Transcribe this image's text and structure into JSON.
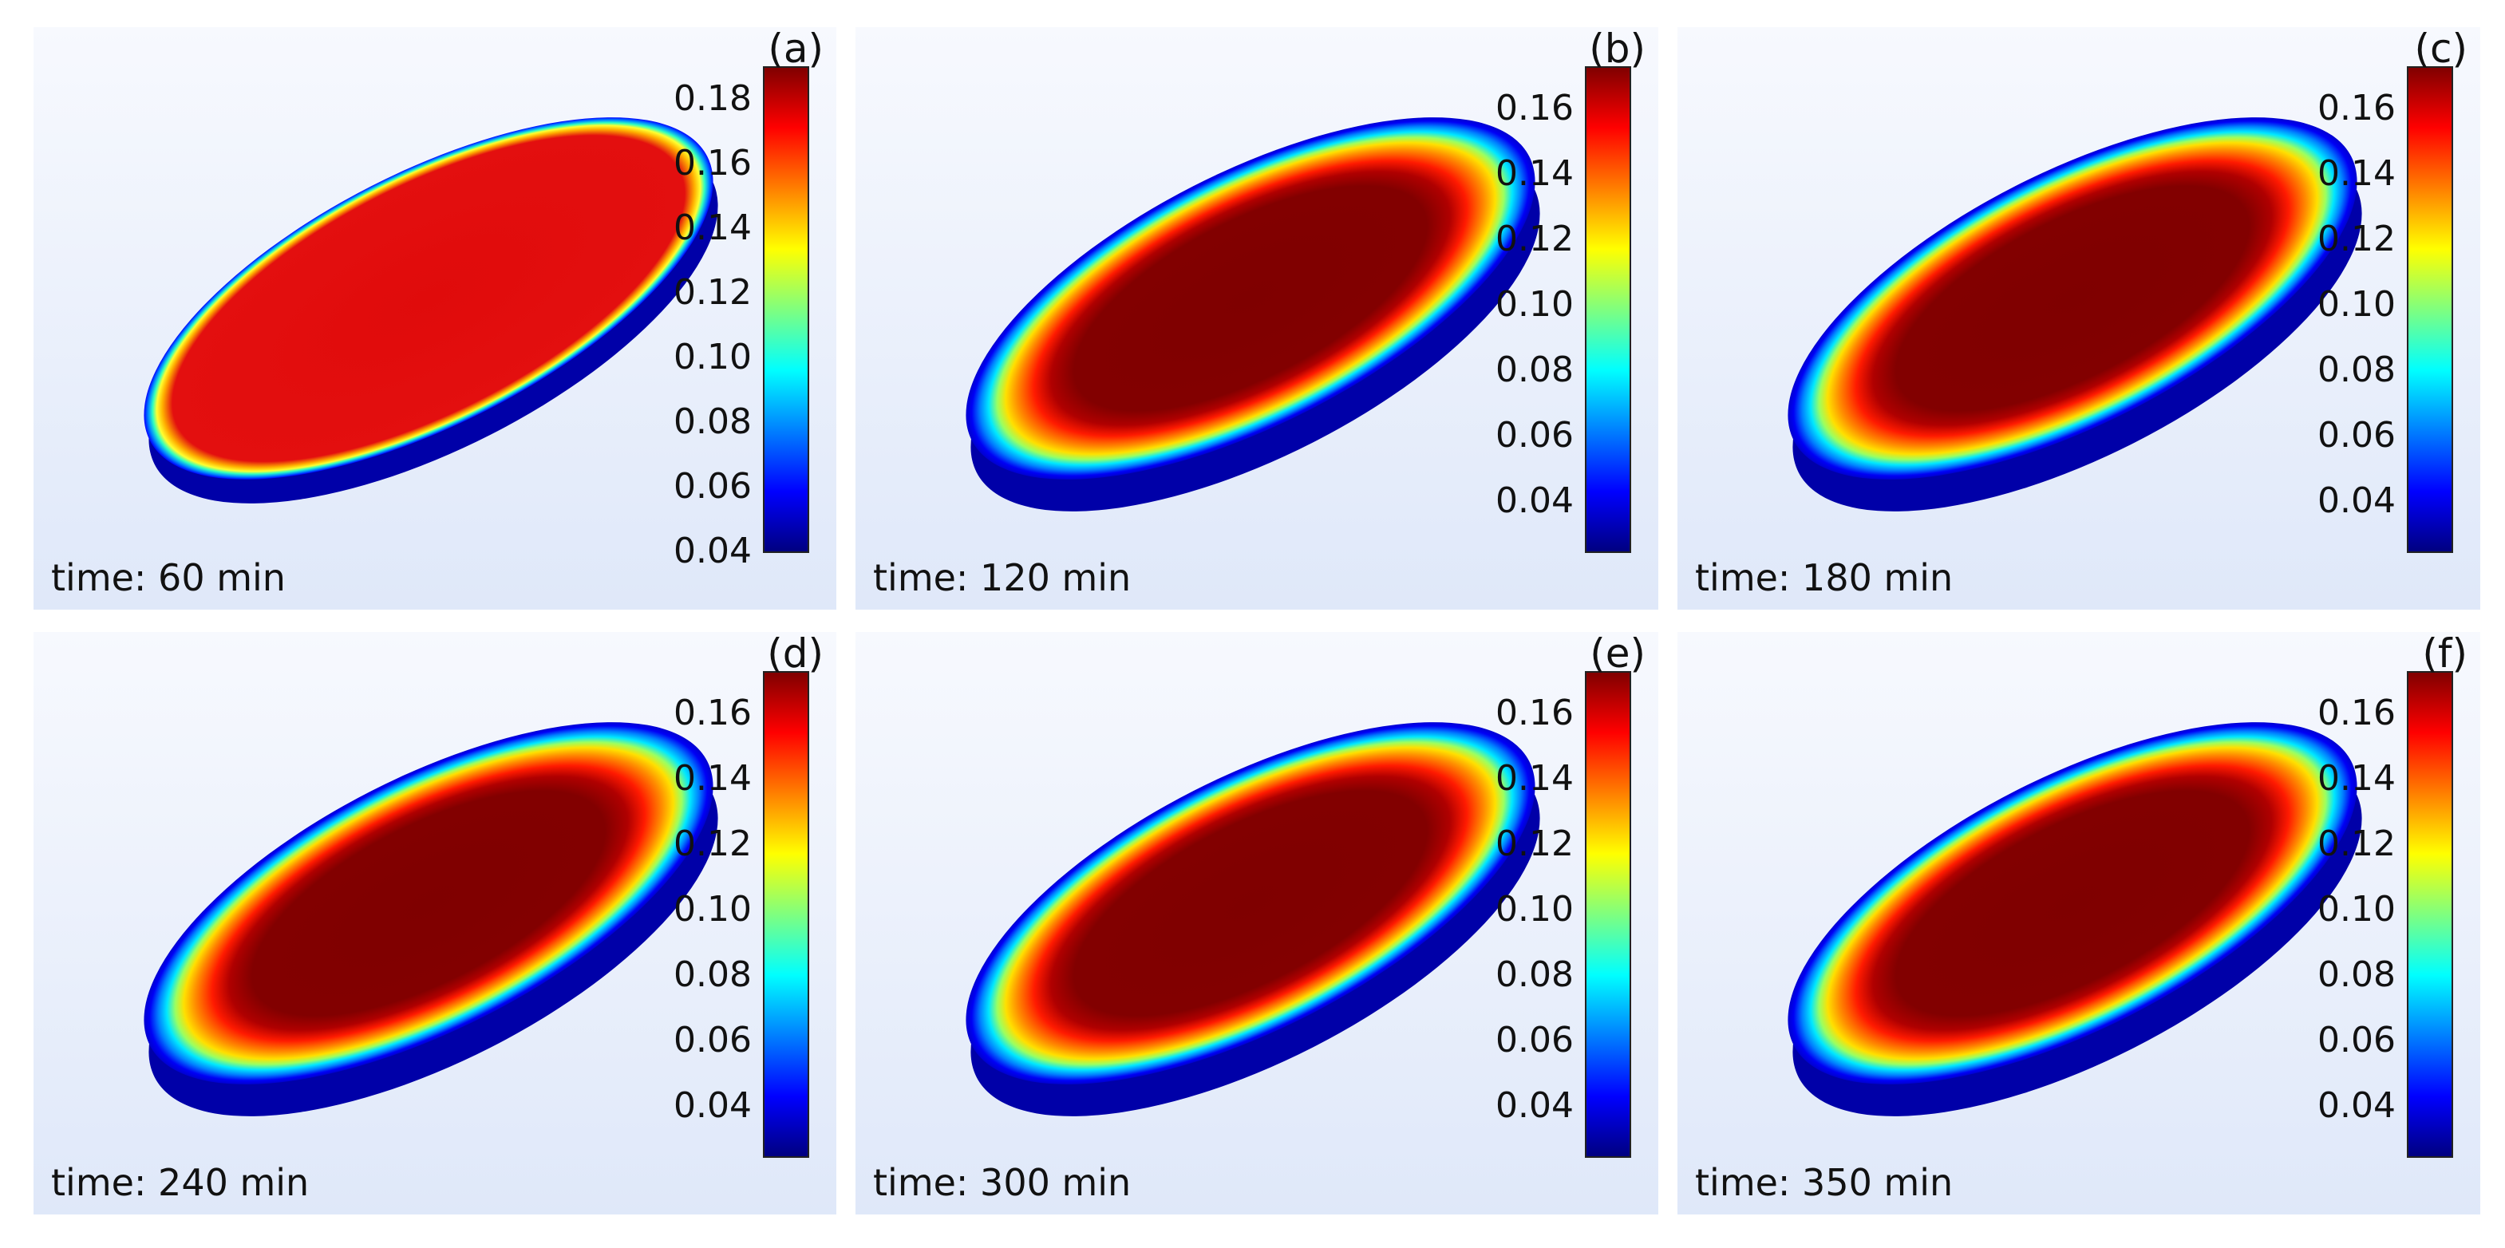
{
  "panels": [
    {
      "label": "(a)",
      "time": "time: 60 min",
      "ticks": [
        "0.18",
        "0.16",
        "0.14",
        "0.12",
        "0.10",
        "0.08",
        "0.06",
        "0.04"
      ]
    },
    {
      "label": "(b)",
      "time": "time: 120 min",
      "ticks": [
        "0.16",
        "0.14",
        "0.12",
        "0.10",
        "0.08",
        "0.06",
        "0.04"
      ]
    },
    {
      "label": "(c)",
      "time": "time: 180 min",
      "ticks": [
        "0.16",
        "0.14",
        "0.12",
        "0.10",
        "0.08",
        "0.06",
        "0.04"
      ]
    },
    {
      "label": "(d)",
      "time": "time: 240 min",
      "ticks": [
        "0.16",
        "0.14",
        "0.12",
        "0.10",
        "0.08",
        "0.06",
        "0.04"
      ]
    },
    {
      "label": "(e)",
      "time": "time: 300 min",
      "ticks": [
        "0.16",
        "0.14",
        "0.12",
        "0.10",
        "0.08",
        "0.06",
        "0.04"
      ]
    },
    {
      "label": "(f)",
      "time": "time: 350 min",
      "ticks": [
        "0.16",
        "0.14",
        "0.12",
        "0.10",
        "0.08",
        "0.06",
        "0.04"
      ]
    }
  ],
  "colorbar": {
    "colors": [
      "#00007f",
      "#0000ff",
      "#007fff",
      "#00ffff",
      "#7fff7f",
      "#ffff00",
      "#ff7f00",
      "#ff0000",
      "#7f0000"
    ]
  }
}
